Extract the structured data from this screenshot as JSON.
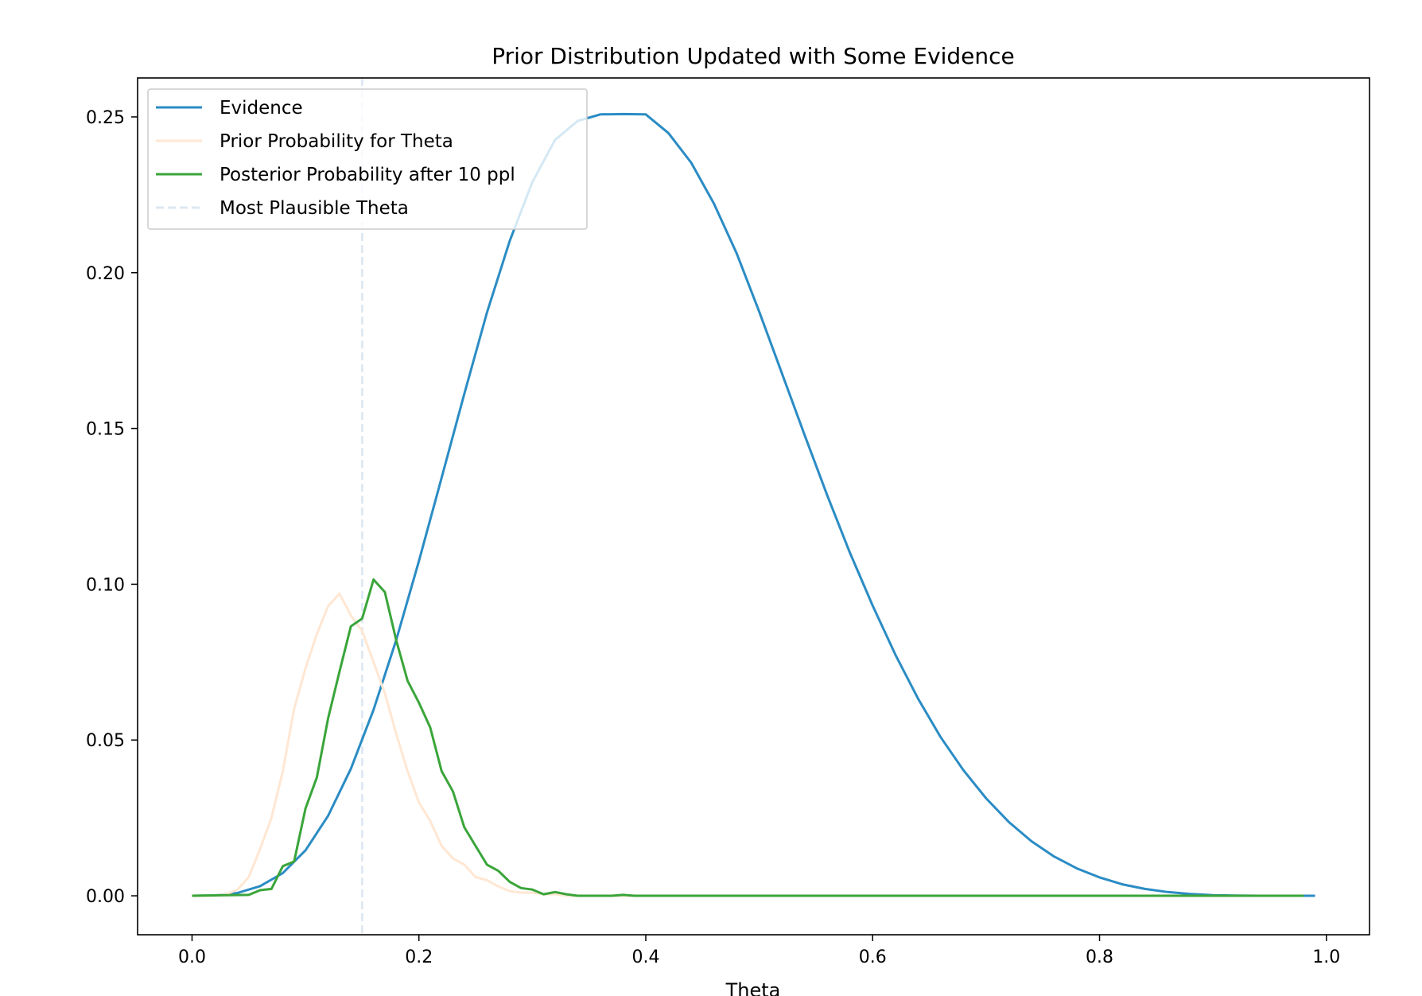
{
  "chart_data": {
    "type": "line",
    "title": "Prior Distribution Updated with Some Evidence",
    "xlabel": "Theta",
    "ylabel": "",
    "xlim": [
      -0.048,
      1.038
    ],
    "ylim": [
      -0.0125,
      0.2625
    ],
    "xticks": [
      0.0,
      0.2,
      0.4,
      0.6,
      0.8,
      1.0
    ],
    "xtick_labels": [
      "0.0",
      "0.2",
      "0.4",
      "0.6",
      "0.8",
      "1.0"
    ],
    "yticks": [
      0.0,
      0.05,
      0.1,
      0.15,
      0.2,
      0.25
    ],
    "ytick_labels": [
      "0.00",
      "0.05",
      "0.10",
      "0.15",
      "0.20",
      "0.25"
    ],
    "grid": false,
    "legend_position": "top-left",
    "series": [
      {
        "name": "Evidence",
        "color": "#2b8cc4",
        "style": "solid",
        "x": [
          0.0,
          0.02,
          0.04,
          0.06,
          0.08,
          0.1,
          0.12,
          0.14,
          0.16,
          0.18,
          0.2,
          0.22,
          0.24,
          0.26,
          0.28,
          0.3,
          0.32,
          0.34,
          0.36,
          0.38,
          0.4,
          0.42,
          0.44,
          0.46,
          0.48,
          0.5,
          0.52,
          0.54,
          0.56,
          0.58,
          0.6,
          0.62,
          0.64,
          0.66,
          0.68,
          0.7,
          0.72,
          0.74,
          0.76,
          0.78,
          0.8,
          0.82,
          0.84,
          0.86,
          0.88,
          0.9,
          0.92,
          0.94,
          0.96,
          0.98,
          0.99
        ],
        "values": [
          0.0,
          0.0001,
          0.0009,
          0.0031,
          0.0073,
          0.0146,
          0.0257,
          0.0408,
          0.0597,
          0.0821,
          0.1074,
          0.1342,
          0.1611,
          0.1872,
          0.2101,
          0.2291,
          0.2426,
          0.2487,
          0.2508,
          0.2509,
          0.2508,
          0.2448,
          0.2353,
          0.2222,
          0.2063,
          0.1875,
          0.1677,
          0.1479,
          0.1285,
          0.1101,
          0.0931,
          0.0774,
          0.0633,
          0.0509,
          0.0403,
          0.0313,
          0.0237,
          0.0175,
          0.0126,
          0.0088,
          0.0059,
          0.0037,
          0.0022,
          0.0012,
          0.0006,
          0.0002,
          0.0001,
          0.0,
          0.0,
          0.0,
          0.0
        ]
      },
      {
        "name": "Prior Probability for Theta",
        "color": "#ffe7d3",
        "style": "solid",
        "x": [
          0.0,
          0.01,
          0.02,
          0.03,
          0.04,
          0.05,
          0.06,
          0.07,
          0.08,
          0.09,
          0.1,
          0.11,
          0.12,
          0.13,
          0.14,
          0.15,
          0.16,
          0.17,
          0.18,
          0.19,
          0.2,
          0.21,
          0.22,
          0.23,
          0.24,
          0.25,
          0.26,
          0.27,
          0.28,
          0.29,
          0.3,
          0.31,
          0.32,
          0.33,
          0.34,
          0.35,
          0.36,
          0.4,
          0.5,
          0.6,
          0.7,
          0.8,
          0.9,
          0.98
        ],
        "values": [
          0.0,
          0.0,
          0.0,
          0.0005,
          0.002,
          0.006,
          0.015,
          0.025,
          0.04,
          0.06,
          0.073,
          0.084,
          0.093,
          0.097,
          0.09,
          0.085,
          0.075,
          0.065,
          0.052,
          0.04,
          0.03,
          0.024,
          0.016,
          0.012,
          0.01,
          0.006,
          0.005,
          0.003,
          0.0015,
          0.001,
          0.001,
          0.0005,
          0.0005,
          0.0,
          0.0,
          0.0,
          0.0,
          0.0,
          0.0,
          0.0,
          0.0,
          0.0,
          0.0,
          0.0
        ]
      },
      {
        "name": "Posterior Probability after 10 ppl",
        "color": "#3aa53a",
        "style": "solid",
        "x": [
          0.0,
          0.05,
          0.06,
          0.07,
          0.08,
          0.09,
          0.1,
          0.11,
          0.12,
          0.13,
          0.14,
          0.15,
          0.16,
          0.17,
          0.18,
          0.19,
          0.2,
          0.21,
          0.22,
          0.23,
          0.24,
          0.25,
          0.26,
          0.27,
          0.28,
          0.29,
          0.3,
          0.31,
          0.32,
          0.33,
          0.34,
          0.35,
          0.36,
          0.37,
          0.38,
          0.39,
          0.4,
          0.5,
          0.6,
          0.7,
          0.8,
          0.9,
          0.98
        ],
        "values": [
          0.0,
          0.0003,
          0.0018,
          0.0022,
          0.0095,
          0.011,
          0.028,
          0.038,
          0.057,
          0.072,
          0.0865,
          0.089,
          0.1015,
          0.0975,
          0.082,
          0.069,
          0.062,
          0.054,
          0.04,
          0.0335,
          0.022,
          0.016,
          0.01,
          0.008,
          0.0045,
          0.0025,
          0.002,
          0.0005,
          0.0012,
          0.0005,
          0.0,
          0.0,
          0.0,
          0.0,
          0.0003,
          0.0,
          0.0,
          0.0,
          0.0,
          0.0,
          0.0,
          0.0,
          0.0
        ]
      }
    ],
    "vlines": [
      {
        "name": "Most Plausible Theta",
        "x": 0.15,
        "color": "#dde7f2",
        "style": "dashed"
      }
    ]
  }
}
